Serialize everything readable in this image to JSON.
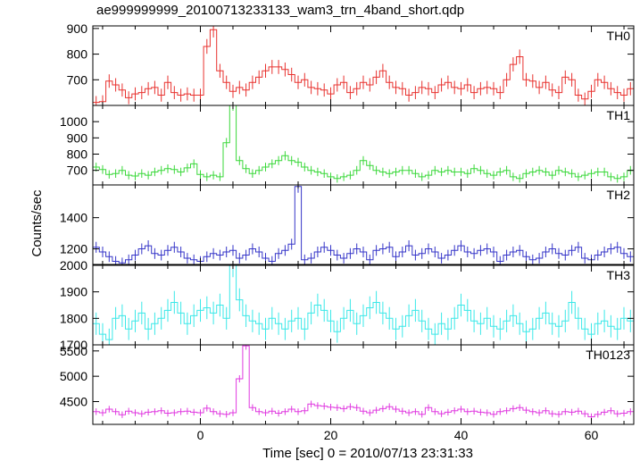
{
  "chart_data": {
    "type": "line",
    "title": "ae999999999_20100713233133_wam3_trn_4band_short.qdp",
    "xlabel": "Time [sec] 0 = 2010/07/13 23:31:33",
    "ylabel": "Counts/sec",
    "xlim": [
      -16.5,
      66.5
    ],
    "x_ticks": [
      0,
      20,
      40,
      60
    ],
    "bin_width": 1.0,
    "x_start": -16,
    "panels": [
      {
        "name": "TH0",
        "color": "#e8322f",
        "ylim": [
          600,
          910
        ],
        "y_ticks": [
          700,
          800,
          900
        ],
        "values": [
          612,
          615,
          695,
          680,
          660,
          630,
          645,
          650,
          665,
          670,
          640,
          690,
          650,
          640,
          645,
          640,
          640,
          830,
          895,
          735,
          690,
          655,
          670,
          660,
          690,
          710,
          735,
          750,
          750,
          740,
          720,
          690,
          700,
          670,
          665,
          660,
          645,
          680,
          690,
          650,
          665,
          690,
          680,
          710,
          735,
          690,
          670,
          665,
          640,
          650,
          670,
          665,
          650,
          680,
          690,
          670,
          665,
          680,
          650,
          665,
          670,
          665,
          650,
          700,
          760,
          790,
          700,
          695,
          670,
          690,
          660,
          650,
          710,
          700,
          640,
          625,
          655,
          700,
          690,
          665,
          650,
          640,
          665,
          700,
          690,
          650,
          655,
          670,
          650,
          650,
          660,
          655,
          655,
          650,
          670,
          650,
          660,
          665
        ]
      },
      {
        "name": "TH1",
        "color": "#3ad83a",
        "ylim": [
          610,
          1100
        ],
        "y_ticks": [
          700,
          800,
          900,
          1000
        ],
        "values": [
          720,
          705,
          675,
          680,
          700,
          670,
          665,
          680,
          670,
          690,
          700,
          710,
          705,
          690,
          715,
          740,
          675,
          660,
          670,
          660,
          870,
          1100,
          760,
          710,
          680,
          700,
          720,
          740,
          760,
          790,
          760,
          750,
          720,
          700,
          690,
          680,
          660,
          650,
          660,
          670,
          700,
          760,
          730,
          700,
          690,
          680,
          690,
          700,
          700,
          680,
          660,
          670,
          700,
          690,
          700,
          690,
          690,
          680,
          710,
          700,
          680,
          670,
          690,
          700,
          660,
          650,
          680,
          690,
          700,
          690,
          670,
          700,
          690,
          680,
          660,
          670,
          680,
          690,
          690,
          660,
          650,
          660,
          700,
          690,
          680,
          700,
          690,
          710,
          680,
          700,
          720,
          690,
          700,
          730,
          760,
          700,
          690,
          680
        ]
      },
      {
        "name": "TH2",
        "color": "#3535c8",
        "ylim": [
          1100,
          1610
        ],
        "y_ticks": [
          1200,
          1400
        ],
        "values": [
          1210,
          1180,
          1150,
          1120,
          1110,
          1130,
          1160,
          1200,
          1220,
          1170,
          1160,
          1190,
          1210,
          1180,
          1140,
          1130,
          1120,
          1150,
          1170,
          1160,
          1180,
          1190,
          1140,
          1160,
          1200,
          1180,
          1140,
          1120,
          1170,
          1190,
          1230,
          1600,
          1130,
          1140,
          1180,
          1210,
          1190,
          1160,
          1140,
          1170,
          1200,
          1180,
          1130,
          1190,
          1200,
          1210,
          1150,
          1180,
          1220,
          1160,
          1170,
          1200,
          1180,
          1140,
          1160,
          1190,
          1220,
          1180,
          1170,
          1190,
          1200,
          1180,
          1120,
          1160,
          1180,
          1190,
          1150,
          1130,
          1140,
          1180,
          1200,
          1170,
          1160,
          1190,
          1210,
          1140,
          1130,
          1160,
          1180,
          1200,
          1210,
          1170,
          1150,
          1180,
          1190,
          1140,
          1160,
          1180,
          1130,
          1150,
          1170,
          1190,
          1160,
          1140,
          1120,
          1150,
          1170,
          1140
        ]
      },
      {
        "name": "TH3",
        "color": "#3ae8e8",
        "ylim": [
          1700,
          2000
        ],
        "y_ticks": [
          1700,
          1800,
          1900,
          2000
        ],
        "values": [
          1780,
          1740,
          1720,
          1800,
          1810,
          1760,
          1790,
          1820,
          1760,
          1780,
          1800,
          1830,
          1860,
          1820,
          1780,
          1810,
          1830,
          1840,
          1820,
          1850,
          1800,
          2000,
          1870,
          1810,
          1790,
          1780,
          1760,
          1800,
          1780,
          1760,
          1790,
          1800,
          1760,
          1820,
          1850,
          1830,
          1790,
          1750,
          1800,
          1830,
          1780,
          1810,
          1840,
          1860,
          1820,
          1800,
          1760,
          1770,
          1810,
          1830,
          1790,
          1760,
          1740,
          1780,
          1760,
          1800,
          1850,
          1830,
          1790,
          1780,
          1800,
          1770,
          1760,
          1790,
          1810,
          1780,
          1750,
          1760,
          1800,
          1820,
          1780,
          1770,
          1790,
          1860,
          1800,
          1760,
          1740,
          1780,
          1790,
          1770,
          1760,
          1800,
          1790,
          1820,
          1780,
          1760,
          1780,
          1800,
          1840,
          1820,
          1800,
          1780,
          1790,
          1770,
          1760,
          1780,
          1770,
          1790
        ]
      },
      {
        "name": "TH0123",
        "color": "#e03ae0",
        "ylim": [
          4050,
          5620
        ],
        "y_ticks": [
          4500,
          5000,
          5500
        ],
        "values": [
          4300,
          4280,
          4350,
          4300,
          4240,
          4310,
          4280,
          4260,
          4290,
          4300,
          4320,
          4270,
          4280,
          4300,
          4310,
          4290,
          4280,
          4370,
          4300,
          4260,
          4250,
          4280,
          4950,
          5600,
          4380,
          4300,
          4280,
          4310,
          4270,
          4300,
          4350,
          4300,
          4320,
          4450,
          4420,
          4410,
          4390,
          4380,
          4360,
          4400,
          4380,
          4310,
          4280,
          4330,
          4360,
          4400,
          4350,
          4310,
          4280,
          4300,
          4250,
          4380,
          4300,
          4260,
          4290,
          4320,
          4350,
          4300,
          4310,
          4290,
          4280,
          4250,
          4300,
          4320,
          4360,
          4380,
          4330,
          4300,
          4280,
          4320,
          4260,
          4250,
          4300,
          4290,
          4310,
          4260,
          4200,
          4250,
          4290,
          4320,
          4260,
          4270,
          4300,
          4280,
          4250,
          4290,
          4300,
          4270,
          4260,
          4300,
          4280,
          4250,
          4270,
          4290,
          4260,
          4280,
          4260,
          4280
        ]
      }
    ]
  }
}
